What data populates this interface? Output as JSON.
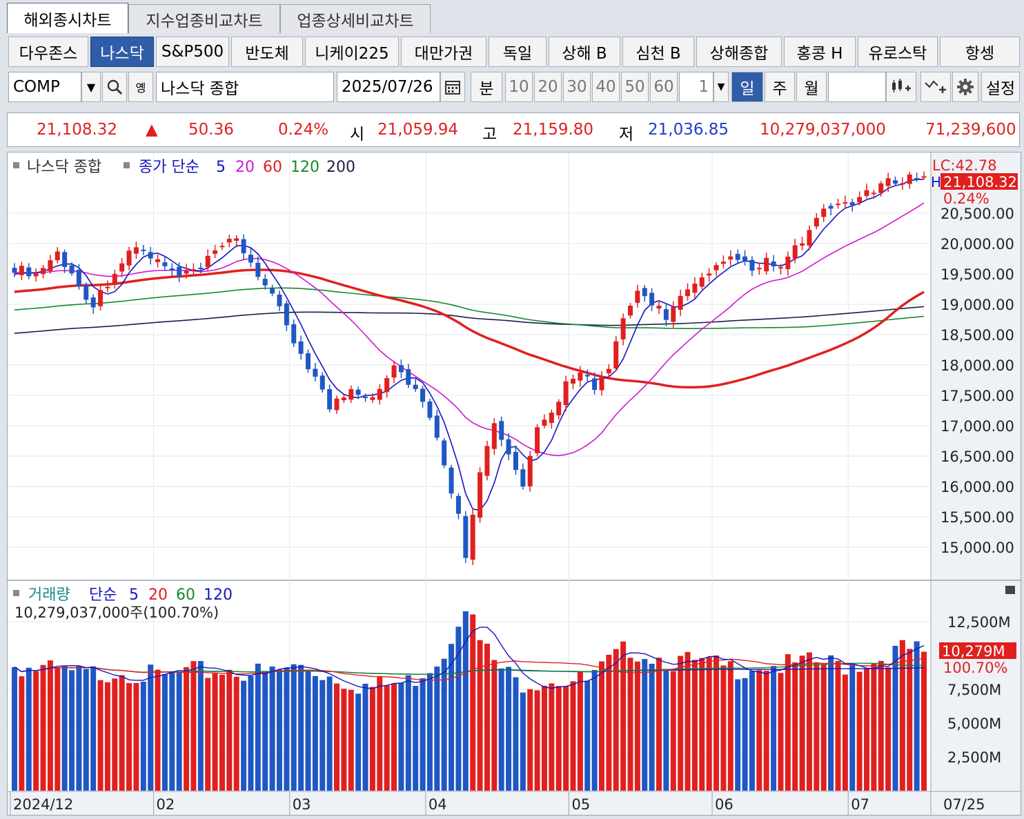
{
  "tabs": [
    "해외종시차트",
    "지수업종비교차트",
    "업종상세비교차트"
  ],
  "index_buttons": [
    "다우존스",
    "나스닥",
    "S&P500",
    "반도체",
    "니케이225",
    "대만가권",
    "독일",
    "상해 B",
    "심천 B",
    "상해종합",
    "홍콩 H",
    "유로스탁",
    "항셍"
  ],
  "toolbar": {
    "code": "COMP",
    "name": "나스닥 종합",
    "date": "2025/07/26",
    "minute_label": "분",
    "minute_options": [
      "10",
      "20",
      "30",
      "40",
      "50",
      "60"
    ],
    "period_count": "1",
    "period_day": "일",
    "period_week": "주",
    "period_month": "월",
    "settings_label": "설정",
    "small_label": "옝"
  },
  "quote": {
    "price": "21,108.32",
    "change_arrow": "▲",
    "change": "50.36",
    "change_pct": "0.24%",
    "open_label": "시",
    "open": "21,059.94",
    "high_label": "고",
    "high": "21,159.80",
    "low_label": "저",
    "low": "21,036.85",
    "volume": "10,279,037,000",
    "amount": "71,239,600"
  },
  "price_panel": {
    "legend_name": "나스닥 종합",
    "legend_ma_label": "종가 단순",
    "ma_periods": [
      "5",
      "20",
      "60",
      "120",
      "200"
    ],
    "lc_label": "LC:42.78",
    "h_label": "H",
    "last_price": "21,108.32",
    "last_pct": "0.24%"
  },
  "volume_panel": {
    "legend_title": "거래량",
    "legend_ma_label": "단순",
    "ma_periods": [
      "5",
      "20",
      "60",
      "120"
    ],
    "value_line": "10,279,037,000주(100.70%)",
    "last_value": "10,279M",
    "last_pct": "100.70%"
  },
  "chart_data": [
    {
      "type": "candlestick",
      "title": "나스닥 종합",
      "x_labels": [
        "2024/12",
        "02",
        "03",
        "04",
        "05",
        "06",
        "07"
      ],
      "x_end_label": "07/25",
      "y_ticks": [
        "20,500.00",
        "20,000.00",
        "19,500.00",
        "19,000.00",
        "18,500.00",
        "18,000.00",
        "17,500.00",
        "17,000.00",
        "16,500.00",
        "16,000.00",
        "15,500.00",
        "15,000.00"
      ],
      "ylim": [
        14600,
        21500
      ],
      "series_colors": {
        "up": "#e0201f",
        "down": "#1f57c4",
        "ma5": "#1515c0",
        "ma20": "#d016d0",
        "ma60": "#e0201f",
        "ma120": "#138a2e",
        "ma200": "#1c1c4a"
      },
      "close_waypoints": [
        [
          0,
          19600
        ],
        [
          3,
          19500
        ],
        [
          6,
          19850
        ],
        [
          9,
          19300
        ],
        [
          11,
          19000
        ],
        [
          14,
          19550
        ],
        [
          17,
          19950
        ],
        [
          20,
          19700
        ],
        [
          23,
          19450
        ],
        [
          26,
          19600
        ],
        [
          29,
          19950
        ],
        [
          31,
          20050
        ],
        [
          33,
          19700
        ],
        [
          35,
          19300
        ],
        [
          37,
          18900
        ],
        [
          39,
          18400
        ],
        [
          42,
          17800
        ],
        [
          44,
          17300
        ],
        [
          47,
          17600
        ],
        [
          50,
          17500
        ],
        [
          53,
          18000
        ],
        [
          56,
          17600
        ],
        [
          58,
          17100
        ],
        [
          60,
          16400
        ],
        [
          62,
          15500
        ],
        [
          63,
          14900
        ],
        [
          65,
          16300
        ],
        [
          67,
          17000
        ],
        [
          69,
          16500
        ],
        [
          71,
          16000
        ],
        [
          73,
          16900
        ],
        [
          75,
          17200
        ],
        [
          77,
          17700
        ],
        [
          79,
          17950
        ],
        [
          81,
          17600
        ],
        [
          83,
          17900
        ],
        [
          85,
          18750
        ],
        [
          87,
          19200
        ],
        [
          89,
          19050
        ],
        [
          91,
          18800
        ],
        [
          93,
          19100
        ],
        [
          95,
          19300
        ],
        [
          97,
          19450
        ],
        [
          99,
          19700
        ],
        [
          101,
          19800
        ],
        [
          103,
          19500
        ],
        [
          105,
          19700
        ],
        [
          107,
          19600
        ],
        [
          109,
          19900
        ],
        [
          111,
          20200
        ],
        [
          113,
          20500
        ],
        [
          115,
          20650
        ],
        [
          117,
          20700
        ],
        [
          119,
          20800
        ],
        [
          121,
          20950
        ],
        [
          123,
          21050
        ],
        [
          125,
          21100
        ],
        [
          127,
          21108
        ]
      ]
    },
    {
      "type": "bar",
      "title": "거래량",
      "y_ticks": [
        "12,500M",
        "7,500M",
        "5,000M",
        "2,500M"
      ],
      "ylim": [
        0,
        15000
      ],
      "units": "M",
      "volume_waypoints": [
        [
          0,
          9300
        ],
        [
          5,
          8800
        ],
        [
          10,
          8500
        ],
        [
          15,
          9000
        ],
        [
          20,
          8300
        ],
        [
          25,
          8700
        ],
        [
          30,
          9000
        ],
        [
          35,
          8600
        ],
        [
          40,
          9200
        ],
        [
          45,
          8400
        ],
        [
          50,
          7600
        ],
        [
          55,
          8000
        ],
        [
          58,
          9300
        ],
        [
          60,
          10200
        ],
        [
          62,
          13000
        ],
        [
          63,
          14000
        ],
        [
          65,
          11000
        ],
        [
          67,
          9500
        ],
        [
          70,
          8000
        ],
        [
          75,
          8400
        ],
        [
          80,
          8000
        ],
        [
          84,
          9800
        ],
        [
          86,
          10600
        ],
        [
          88,
          10200
        ],
        [
          92,
          9600
        ],
        [
          96,
          9300
        ],
        [
          100,
          9000
        ],
        [
          104,
          9400
        ],
        [
          108,
          9200
        ],
        [
          112,
          9400
        ],
        [
          116,
          9300
        ],
        [
          120,
          9600
        ],
        [
          124,
          10400
        ],
        [
          127,
          10279
        ]
      ]
    }
  ]
}
